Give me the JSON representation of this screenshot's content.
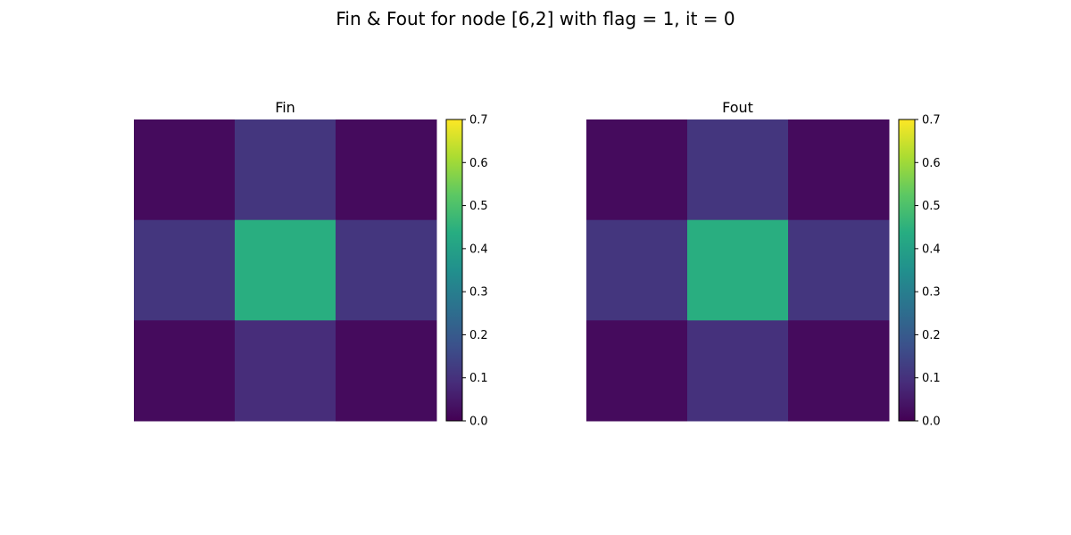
{
  "figure": {
    "title": "Fin & Fout for node [6,2] with flag = 1, it = 0"
  },
  "chart_data": [
    {
      "type": "heatmap",
      "title": "Fin",
      "rows": 3,
      "cols": 3,
      "values": [
        [
          0.02,
          0.11,
          0.02
        ],
        [
          0.11,
          0.44,
          0.11
        ],
        [
          0.02,
          0.09,
          0.02
        ]
      ],
      "colormap": "viridis",
      "colorbar": {
        "vmin": 0.0,
        "vmax": 0.7,
        "ticks": [
          "0.0",
          "0.1",
          "0.2",
          "0.3",
          "0.4",
          "0.5",
          "0.6",
          "0.7"
        ]
      },
      "axes_visible": false
    },
    {
      "type": "heatmap",
      "title": "Fout",
      "rows": 3,
      "cols": 3,
      "values": [
        [
          0.02,
          0.11,
          0.02
        ],
        [
          0.11,
          0.44,
          0.11
        ],
        [
          0.02,
          0.1,
          0.02
        ]
      ],
      "colormap": "viridis",
      "colorbar": {
        "vmin": 0.0,
        "vmax": 0.7,
        "ticks": [
          "0.0",
          "0.1",
          "0.2",
          "0.3",
          "0.4",
          "0.5",
          "0.6",
          "0.7"
        ]
      },
      "axes_visible": false
    }
  ]
}
